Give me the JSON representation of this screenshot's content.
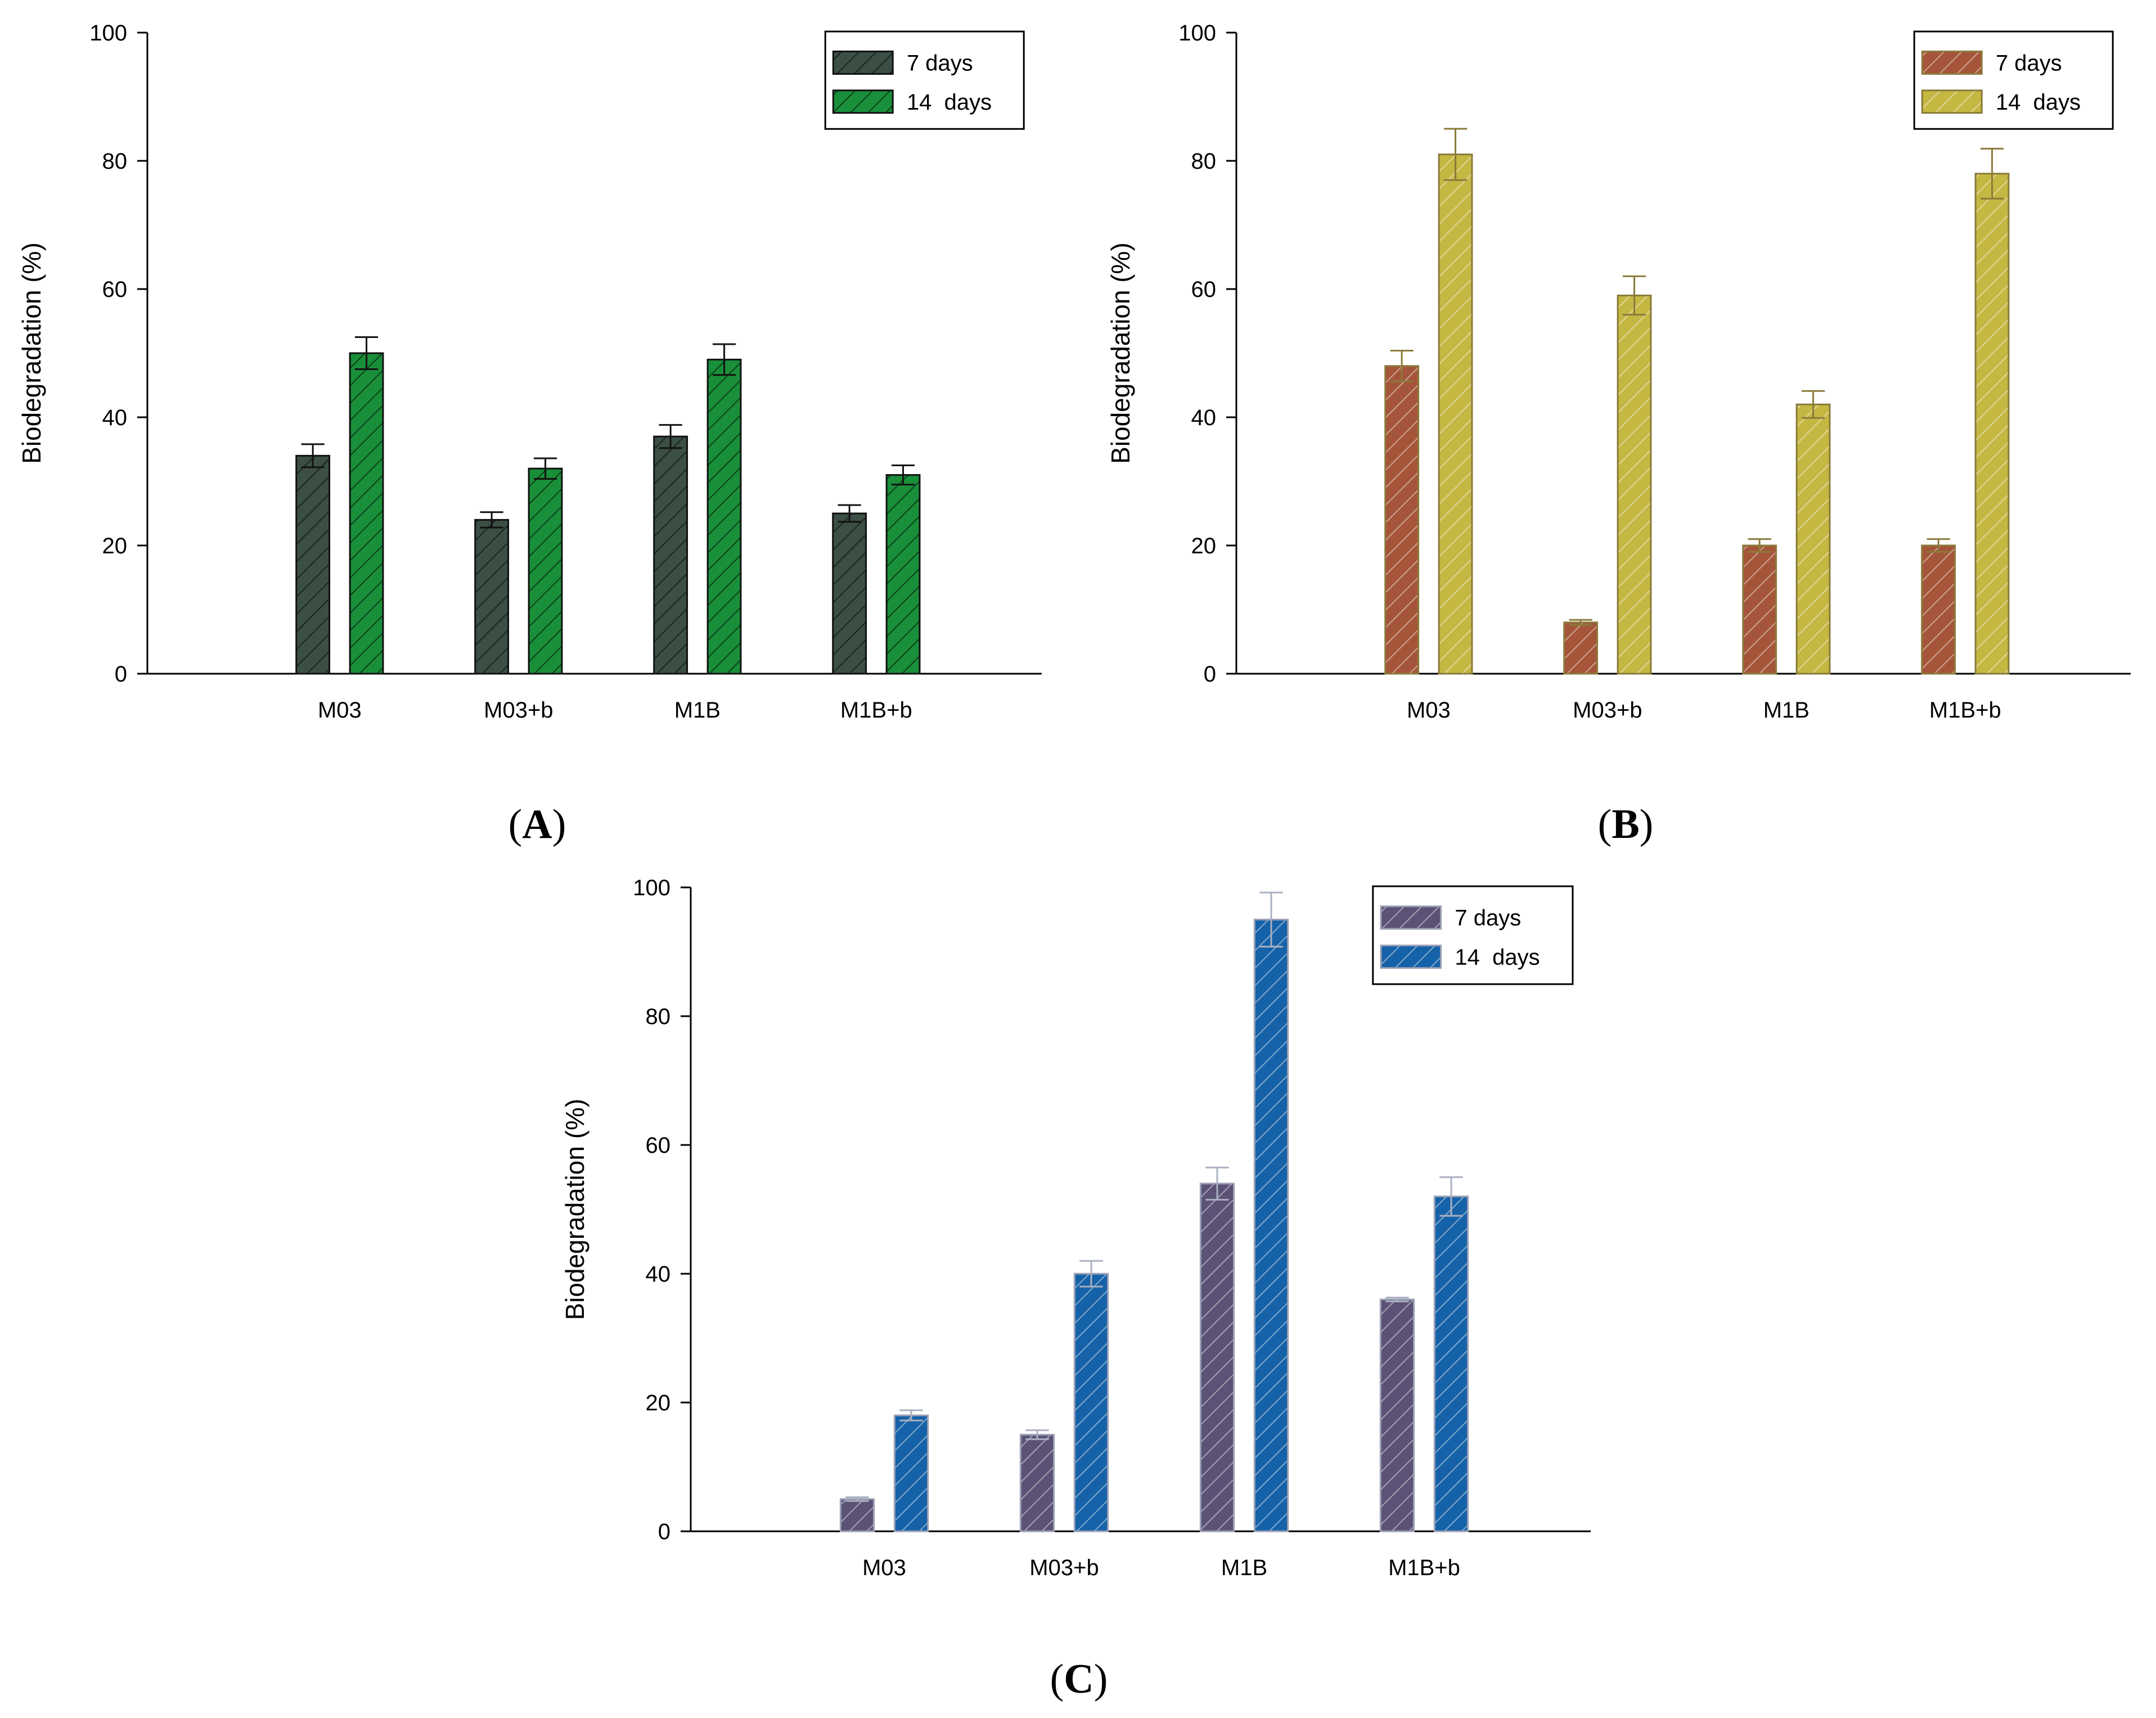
{
  "figure": {
    "panels": [
      {
        "id": "A",
        "label": "A",
        "colors": {
          "days7": "#3b4f45",
          "days14": "#1a8f3a",
          "stroke": "#111111",
          "error": "#111111"
        },
        "chart_data": {
          "type": "bar",
          "title": "",
          "xlabel": "",
          "ylabel": "Biodegradation (%)",
          "ylim": [
            0,
            100
          ],
          "yticks": [
            "0",
            "20",
            "40",
            "60",
            "80",
            "100"
          ],
          "categories": [
            "M03",
            "M03+b",
            "M1B",
            "M1B+b"
          ],
          "series": [
            {
              "name": "7 days",
              "values": [
                34,
                24,
                37,
                25
              ],
              "errors": [
                1.8,
                1.2,
                1.8,
                1.3
              ]
            },
            {
              "name": "14  days",
              "values": [
                50,
                32,
                49,
                31
              ],
              "errors": [
                2.5,
                1.6,
                2.4,
                1.5
              ]
            }
          ],
          "legend": "top-right"
        }
      },
      {
        "id": "B",
        "label": "B",
        "colors": {
          "days7": "#a5553a",
          "days14": "#c4b843",
          "stroke": "#8a7a3a",
          "error": "#8a7a3a"
        },
        "chart_data": {
          "type": "bar",
          "title": "",
          "xlabel": "",
          "ylabel": "Biodegradation (%)",
          "ylim": [
            0,
            100
          ],
          "yticks": [
            "0",
            "20",
            "40",
            "60",
            "80",
            "100"
          ],
          "categories": [
            "M03",
            "M03+b",
            "M1B",
            "M1B+b"
          ],
          "series": [
            {
              "name": "7 days",
              "values": [
                48,
                8,
                20,
                20
              ],
              "errors": [
                2.4,
                0.4,
                1.0,
                1.0
              ]
            },
            {
              "name": "14  days",
              "values": [
                81,
                59,
                42,
                78
              ],
              "errors": [
                4.0,
                3.0,
                2.1,
                3.9
              ]
            }
          ],
          "legend": "top-right"
        }
      },
      {
        "id": "C",
        "label": "C",
        "colors": {
          "days7": "#5b5275",
          "days14": "#1662a8",
          "stroke": "#9aa0b5",
          "error": "#aab0c0"
        },
        "chart_data": {
          "type": "bar",
          "title": "",
          "xlabel": "",
          "ylabel": "Biodegradation (%)",
          "ylim": [
            0,
            100
          ],
          "yticks": [
            "0",
            "20",
            "40",
            "60",
            "80",
            "100"
          ],
          "categories": [
            "M03",
            "M03+b",
            "M1B",
            "M1B+b"
          ],
          "series": [
            {
              "name": "7 days",
              "values": [
                5,
                15,
                54,
                36
              ],
              "errors": [
                0.3,
                0.7,
                2.5,
                0.3
              ]
            },
            {
              "name": "14  days",
              "values": [
                18,
                40,
                95,
                52
              ],
              "errors": [
                0.8,
                2.0,
                4.2,
                3.0
              ]
            }
          ],
          "legend": "top-right"
        }
      }
    ]
  }
}
